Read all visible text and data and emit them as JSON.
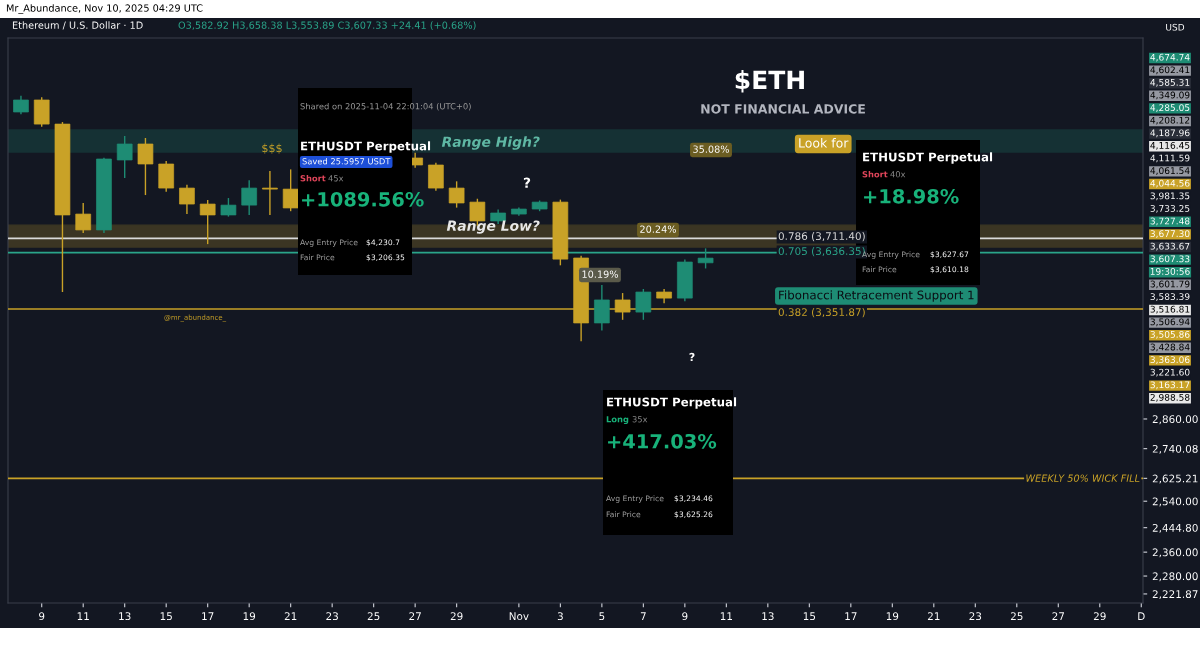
{
  "chart_data": {
    "type": "candlestick",
    "title": "Ethereum / U.S. Dollar · 1D",
    "subtitle": "O3,582.92 H3,658.38 L3,553.89 C3,607.33 +24.41 (+0.68%)",
    "ylabel": "USD",
    "x": [
      "2025-10-08",
      "2025-10-09",
      "2025-10-10",
      "2025-10-11",
      "2025-10-12",
      "2025-10-13",
      "2025-10-14",
      "2025-10-15",
      "2025-10-16",
      "2025-10-17",
      "2025-10-18",
      "2025-10-19",
      "2025-10-20",
      "2025-10-21",
      "2025-10-27",
      "2025-10-28",
      "2025-10-29",
      "2025-10-30",
      "2025-10-31",
      "2025-11-01",
      "2025-11-02",
      "2025-11-03",
      "2025-11-04",
      "2025-11-05",
      "2025-11-06",
      "2025-11-07",
      "2025-11-08",
      "2025-11-09",
      "2025-11-10"
    ],
    "ohlc": [
      [
        4454,
        4560,
        4440,
        4532
      ],
      [
        4532,
        4550,
        4360,
        4377
      ],
      [
        4377,
        4390,
        3435,
        3839
      ],
      [
        3844,
        3906,
        3740,
        3757
      ],
      [
        3757,
        4170,
        3740,
        4162
      ],
      [
        4156,
        4302,
        4049,
        4253
      ],
      [
        4253,
        4290,
        3951,
        4132
      ],
      [
        4132,
        4150,
        3970,
        3991
      ],
      [
        3991,
        4010,
        3844,
        3900
      ],
      [
        3900,
        3923,
        3681,
        3839
      ],
      [
        3839,
        3934,
        3830,
        3894
      ],
      [
        3894,
        4037,
        3839,
        3991
      ],
      [
        3991,
        4090,
        3839,
        3985
      ],
      [
        3985,
        4100,
        3860,
        3878
      ],
      [
        4168,
        4200,
        4110,
        4126
      ],
      [
        4126,
        4140,
        3975,
        3991
      ],
      [
        3991,
        4030,
        3880,
        3906
      ],
      [
        3911,
        3930,
        3780,
        3806
      ],
      [
        3806,
        3870,
        3790,
        3850
      ],
      [
        3844,
        3880,
        3835,
        3872
      ],
      [
        3872,
        3920,
        3860,
        3911
      ],
      [
        3911,
        3925,
        3570,
        3602
      ],
      [
        3608,
        3620,
        3200,
        3285
      ],
      [
        3285,
        3470,
        3250,
        3396
      ],
      [
        3396,
        3430,
        3300,
        3337
      ],
      [
        3337,
        3450,
        3300,
        3435
      ],
      [
        3435,
        3450,
        3380,
        3405
      ],
      [
        3405,
        3600,
        3390,
        3587
      ],
      [
        3582.92,
        3658.38,
        3553.89,
        3607.33
      ]
    ],
    "colors": [
      "#1e8c74",
      "#c9a227",
      "#c9a227",
      "#c9a227",
      "#1e8c74",
      "#1e8c74",
      "#c9a227",
      "#c9a227",
      "#c9a227",
      "#c9a227",
      "#1e8c74",
      "#1e8c74",
      "#c9a227",
      "#c9a227",
      "#c9a227",
      "#c9a227",
      "#c9a227",
      "#c9a227",
      "#1e8c74",
      "#1e8c74",
      "#1e8c74",
      "#c9a227",
      "#c9a227",
      "#1e8c74",
      "#c9a227",
      "#1e8c74",
      "#c9a227",
      "#1e8c74",
      "#1e8c74"
    ],
    "log": "y",
    "xlim": [
      "2025-10-07T09:00",
      "2025-12-01T02:00"
    ],
    "xticks": [
      {
        "value": "2025-10-09",
        "label": "9"
      },
      {
        "value": "2025-10-11",
        "label": "11"
      },
      {
        "value": "2025-10-13",
        "label": "13"
      },
      {
        "value": "2025-10-15",
        "label": "15"
      },
      {
        "value": "2025-10-17",
        "label": "17"
      },
      {
        "value": "2025-10-19",
        "label": "19"
      },
      {
        "value": "2025-10-21",
        "label": "21"
      },
      {
        "value": "2025-10-23",
        "label": "23"
      },
      {
        "value": "2025-10-25",
        "label": "25"
      },
      {
        "value": "2025-10-27",
        "label": "27"
      },
      {
        "value": "2025-10-29",
        "label": "29"
      },
      {
        "value": "2025-11-01",
        "label": "Nov"
      },
      {
        "value": "2025-11-03",
        "label": "3"
      },
      {
        "value": "2025-11-05",
        "label": "5"
      },
      {
        "value": "2025-11-07",
        "label": "7"
      },
      {
        "value": "2025-11-09",
        "label": "9"
      },
      {
        "value": "2025-11-11",
        "label": "11"
      },
      {
        "value": "2025-11-13",
        "label": "13"
      },
      {
        "value": "2025-11-15",
        "label": "15"
      },
      {
        "value": "2025-11-17",
        "label": "17"
      },
      {
        "value": "2025-11-19",
        "label": "19"
      },
      {
        "value": "2025-11-21",
        "label": "21"
      },
      {
        "value": "2025-11-23",
        "label": "23"
      },
      {
        "value": "2025-11-25",
        "label": "25"
      },
      {
        "value": "2025-11-27",
        "label": "27"
      },
      {
        "value": "2025-11-29",
        "label": "29"
      },
      {
        "value": "2025-12-01",
        "label": "D"
      }
    ],
    "ylim": [
      2193,
      4956
    ],
    "yticks": [
      {
        "value": 2221.87,
        "label": "2,221.87"
      },
      {
        "value": 2280,
        "label": "2,280.00"
      },
      {
        "value": 2360,
        "label": "2,360.00"
      },
      {
        "value": 2444.8,
        "label": "2,444.80"
      },
      {
        "value": 2540,
        "label": "2,540.00"
      },
      {
        "value": 2625.21,
        "label": "2,625.21"
      },
      {
        "value": 2740.08,
        "label": "2,740.08"
      },
      {
        "value": 2860,
        "label": "2,860.00"
      }
    ],
    "ref_lines": [
      {
        "axis": "y",
        "value": 3711.4,
        "label": "0.786 (3,711.40)",
        "color": "#d9d9d9"
      },
      {
        "axis": "y",
        "value": 3636.35,
        "label": "0.705 (3,636.35)",
        "color": "#2aa58a"
      },
      {
        "axis": "y",
        "value": 3351.87,
        "label": "0.382 (3,351.87)",
        "color": "#c9a227"
      },
      {
        "axis": "y",
        "value": 2625.21,
        "label": "WEEKLY 50% WICK FILL",
        "color": "#c9a227"
      }
    ],
    "bands": [
      {
        "axis": "y",
        "from": 4204,
        "to": 4340,
        "label": "Range High?",
        "color": "#1e8c74"
      },
      {
        "axis": "y",
        "from": 3665,
        "to": 3783,
        "label": "Range Low?",
        "color": "#c9a227"
      }
    ],
    "annotations": [
      "Mr_Abundance, Nov 10, 2025 04:29 UTC",
      "$ETH",
      "NOT FINANCIAL ADVICE",
      "$$$",
      "?",
      "?",
      "35.08%",
      "20.24%",
      "10.19%",
      "Look for",
      "@mr_abundance_",
      "Shared on 2025-11-04 22:01:04 (UTC+0)",
      "ETHUSDT Perpetual",
      "Saved 25.5957 USDT",
      "Short",
      "45x",
      "+1089.56%",
      "Avg Entry Price",
      "$4,230.7",
      "Fair Price",
      "$3,206.35",
      "ETHUSDT Perpetual",
      "Short",
      "40x",
      "+18.98%",
      "Avg Entry Price",
      "$3,627.67",
      "Fair Price",
      "$3,610.18",
      "ETHUSDT Perpetual",
      "Long",
      "35x",
      "+417.03%",
      "Avg Entry Price",
      "$3,234.46",
      "Fair Price",
      "$3,625.26",
      "Fibonacci Retracement Support 1",
      "4,674.74",
      "4,602.41",
      "4,585.31",
      "4,349.09",
      "4,285.05",
      "4,208.12",
      "4,187.96",
      "4,116.45",
      "4,111.59",
      "4,061.54",
      "4,044.56",
      "3,981.35",
      "3,733.25",
      "3,727.48",
      "3,677.30",
      "3,633.67",
      "3,607.33",
      "19:30:56",
      "3,601.79",
      "3,583.39",
      "3,516.81",
      "3,506.94",
      "3,505.86",
      "3,428.84",
      "3,363.06",
      "3,221.60",
      "3,163.17",
      "2,988.58"
    ]
  }
}
